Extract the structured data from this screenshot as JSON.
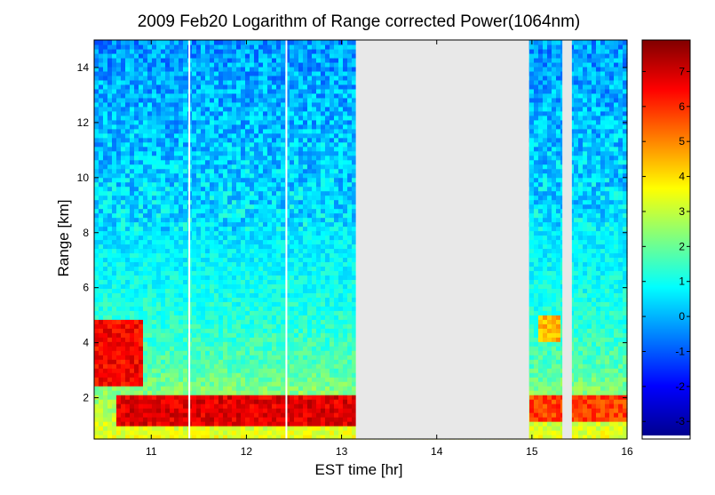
{
  "chart_data": {
    "type": "heatmap",
    "title": "2009 Feb20  Logarithm of Range corrected Power(1064nm)",
    "xlabel": "EST time [hr]",
    "ylabel": "Range [km]",
    "xlim": [
      10.4,
      16.0
    ],
    "ylim": [
      0.5,
      15.0
    ],
    "xticks": [
      11,
      12,
      13,
      14,
      15,
      16
    ],
    "yticks": [
      2,
      4,
      6,
      8,
      10,
      12,
      14
    ],
    "colorbar": {
      "colormap": "jet",
      "min": -3.4,
      "max": 7.9,
      "ticks": [
        7,
        6,
        5,
        4,
        3,
        2,
        1,
        0,
        -1,
        -2,
        -3
      ]
    },
    "no_data_color": "#e8e8e8",
    "data_gaps_hr": [
      [
        13.15,
        14.97
      ],
      [
        15.32,
        15.42
      ]
    ],
    "single_profile_gaps_hr": [
      11.4,
      12.42
    ],
    "layers": [
      {
        "name": "boundary layer",
        "t_start": 10.65,
        "t_end": 13.15,
        "z_bottom_km": 1.0,
        "z_top_km": 2.1,
        "log_power": 6.8
      },
      {
        "name": "boundary layer",
        "t_start": 14.97,
        "t_end": 16.0,
        "z_bottom_km": 1.2,
        "z_top_km": 2.1,
        "log_power": 5.8
      },
      {
        "name": "aerosol layer",
        "t_start": 10.4,
        "t_end": 10.9,
        "z_bottom_km": 2.5,
        "z_top_km": 4.8,
        "log_power": 6.5
      },
      {
        "name": "cloud patch",
        "t_start": 15.08,
        "t_end": 15.32,
        "z_bottom_km": 4.0,
        "z_top_km": 5.0,
        "log_power": 4.5
      }
    ],
    "background_levels": [
      {
        "z_km": 0.5,
        "log_power": 3.5
      },
      {
        "z_km": 3,
        "log_power": 1.8
      },
      {
        "z_km": 5,
        "log_power": 1.2
      },
      {
        "z_km": 8,
        "log_power": 0.6
      },
      {
        "z_km": 11,
        "log_power": 0.2
      },
      {
        "z_km": 15,
        "log_power": -0.3
      }
    ]
  }
}
